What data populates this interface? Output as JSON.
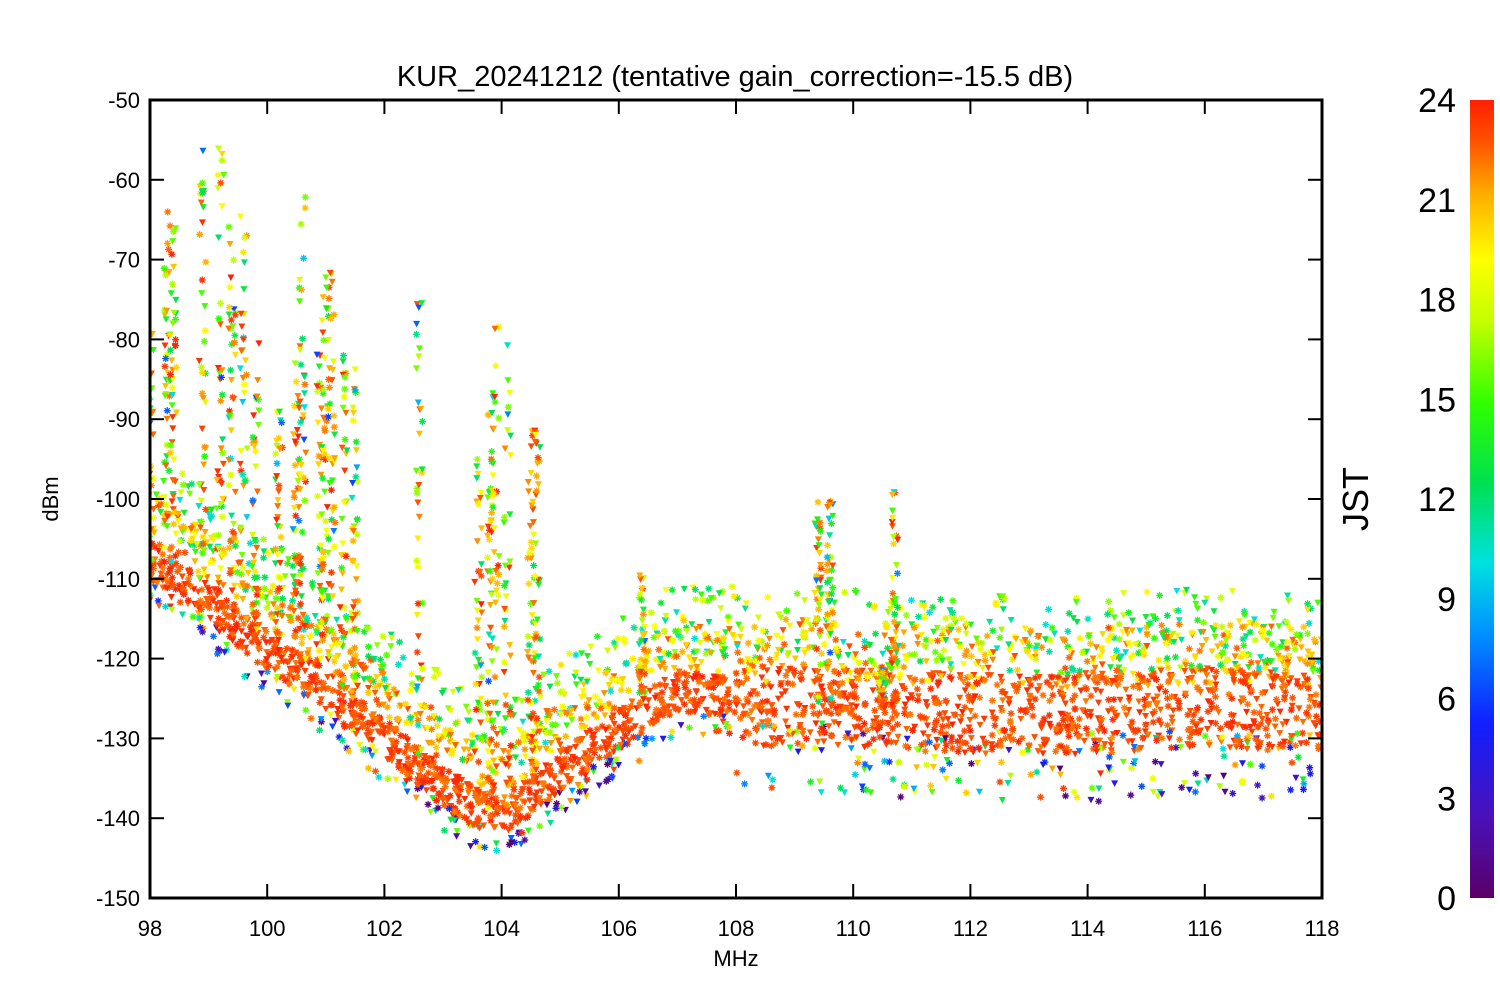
{
  "chart_data": {
    "type": "scatter",
    "title": "KUR_20241212 (tentative gain_correction=-15.5 dB)",
    "xlabel": "MHz",
    "ylabel": "dBm",
    "xlim": [
      98,
      118
    ],
    "ylim": [
      -150,
      -50
    ],
    "x_ticks": [
      "98",
      "100",
      "102",
      "104",
      "106",
      "108",
      "110",
      "112",
      "114",
      "116",
      "118"
    ],
    "y_ticks": [
      "-50",
      "-60",
      "-70",
      "-80",
      "-90",
      "-100",
      "-110",
      "-120",
      "-130",
      "-140",
      "-150"
    ],
    "colorbar": {
      "title": "JST",
      "range": [
        0,
        24
      ],
      "ticks": [
        "24",
        "21",
        "18",
        "15",
        "12",
        "9",
        "6",
        "3",
        "0"
      ],
      "colormap": "rainbow (purple to red)"
    },
    "noise_floor": {
      "x": [
        98,
        99,
        100,
        101,
        102,
        103,
        103.6,
        104,
        104.4,
        105,
        106,
        107,
        108,
        108.01,
        110,
        112,
        114,
        116,
        118
      ],
      "y": [
        -108,
        -113,
        -119,
        -124,
        -130,
        -136,
        -139,
        -139.5,
        -138,
        -134,
        -129,
        -124,
        -125,
        -126,
        -126,
        -127,
        -127,
        -126,
        -127
      ]
    },
    "signals": [
      {
        "x": 98.0,
        "peak": -79
      },
      {
        "x": 98.3,
        "peak": -62
      },
      {
        "x": 98.4,
        "peak": -65
      },
      {
        "x": 98.9,
        "peak": -53
      },
      {
        "x": 99.2,
        "peak": -50
      },
      {
        "x": 99.4,
        "peak": -62
      },
      {
        "x": 99.6,
        "peak": -64
      },
      {
        "x": 99.8,
        "peak": -78
      },
      {
        "x": 100.2,
        "peak": -89
      },
      {
        "x": 100.5,
        "peak": -82
      },
      {
        "x": 100.6,
        "peak": -61
      },
      {
        "x": 100.9,
        "peak": -77
      },
      {
        "x": 101.0,
        "peak": -71
      },
      {
        "x": 101.1,
        "peak": -71
      },
      {
        "x": 101.3,
        "peak": -79
      },
      {
        "x": 101.5,
        "peak": -82
      },
      {
        "x": 102.6,
        "peak": -75
      },
      {
        "x": 103.6,
        "peak": -95
      },
      {
        "x": 103.8,
        "peak": -88
      },
      {
        "x": 103.9,
        "peak": -78
      },
      {
        "x": 104.1,
        "peak": -78
      },
      {
        "x": 104.5,
        "peak": -91
      },
      {
        "x": 104.6,
        "peak": -91
      },
      {
        "x": 106.4,
        "peak": -109
      },
      {
        "x": 109.4,
        "peak": -100
      },
      {
        "x": 109.6,
        "peak": -100
      },
      {
        "x": 110.7,
        "peak": -99
      },
      {
        "x": 110.5,
        "peak": -121
      }
    ],
    "grid": false
  }
}
